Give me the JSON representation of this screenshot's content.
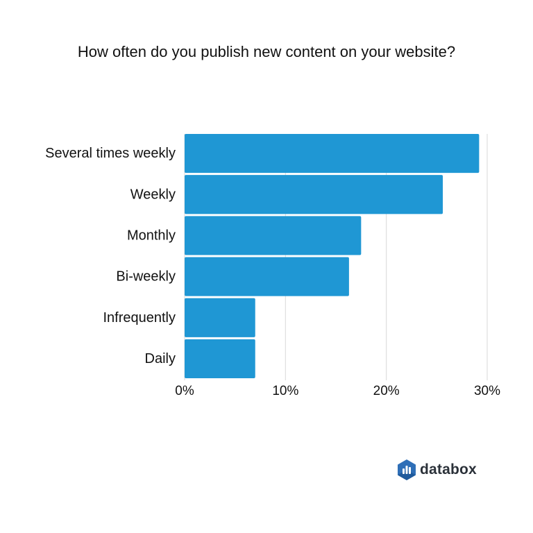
{
  "chart_data": {
    "type": "bar",
    "orientation": "horizontal",
    "title": "How often do you publish new content on your website?",
    "categories": [
      "Several times weekly",
      "Weekly",
      "Monthly",
      "Bi-weekly",
      "Infrequently",
      "Daily"
    ],
    "values": [
      29.2,
      25.6,
      17.5,
      16.3,
      7,
      7
    ],
    "value_unit": "%",
    "xlim": [
      0,
      30
    ],
    "xticks": [
      "0%",
      "10%",
      "20%",
      "30%"
    ],
    "xtick_values": [
      0,
      10,
      20,
      30
    ],
    "grid": "vertical",
    "bar_color": "#1f97d4",
    "grid_color": "#d9d9d9"
  },
  "logo": {
    "text": "databox",
    "mark_color": "#2f6fb7",
    "mark_shade_color": "#1f5a9c",
    "text_color": "#2b3139"
  }
}
